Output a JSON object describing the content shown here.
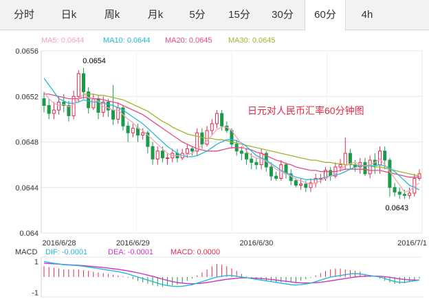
{
  "tabs": [
    {
      "label": "分时",
      "active": false
    },
    {
      "label": "日k",
      "active": false
    },
    {
      "label": "周k",
      "active": false
    },
    {
      "label": "月k",
      "active": false
    },
    {
      "label": "5分",
      "active": false
    },
    {
      "label": "15分",
      "active": false
    },
    {
      "label": "30分",
      "active": false
    },
    {
      "label": "60分",
      "active": true
    },
    {
      "label": "4h",
      "active": false
    }
  ],
  "colors": {
    "up": "#e0284a",
    "down": "#1a9a4a",
    "ma5": "#f5a3b8",
    "ma10": "#22b8d6",
    "ma20": "#e8478a",
    "ma30": "#9bb52a",
    "dif": "#22b8d6",
    "dea": "#cc33cc"
  },
  "chart_data": {
    "type": "candlestick",
    "title": "日元对人民币汇率60分钟图",
    "legend": [
      {
        "label": "MA5: 0.0644",
        "key": "ma5"
      },
      {
        "label": "MA10: 0.0644",
        "key": "ma10"
      },
      {
        "label": "MA20: 0.0645",
        "key": "ma20"
      },
      {
        "label": "MA30: 0.0645",
        "key": "ma30"
      }
    ],
    "y_ticks": [
      "0.0656",
      "0.0652",
      "0.0648",
      "0.0644",
      "0.064"
    ],
    "ylim": [
      0.064,
      0.0656
    ],
    "x_labels": [
      "2016/6/28",
      "2016/6/29",
      "2016/6/30",
      "2016/7/1"
    ],
    "x_label_index": [
      0,
      18,
      43,
      76
    ],
    "annotations": [
      {
        "text": "0.0654",
        "index": 7,
        "value": 0.06543
      },
      {
        "text": "0.0643",
        "index": 73,
        "value": 0.06432
      }
    ],
    "candles": [
      [
        0.06518,
        0.06512,
        0.06524,
        0.06506
      ],
      [
        0.06512,
        0.06505,
        0.06518,
        0.065
      ],
      [
        0.06505,
        0.06508,
        0.06515,
        0.065
      ],
      [
        0.06508,
        0.06515,
        0.0652,
        0.06504
      ],
      [
        0.06515,
        0.06512,
        0.06522,
        0.06506
      ],
      [
        0.06512,
        0.06503,
        0.06516,
        0.06498
      ],
      [
        0.06503,
        0.0652,
        0.06525,
        0.065
      ],
      [
        0.0652,
        0.0654,
        0.06543,
        0.06515
      ],
      [
        0.0654,
        0.06524,
        0.06545,
        0.06518
      ],
      [
        0.06524,
        0.0651,
        0.06528,
        0.06505
      ],
      [
        0.0651,
        0.06518,
        0.06522,
        0.06508
      ],
      [
        0.06518,
        0.06506,
        0.06521,
        0.065
      ],
      [
        0.06506,
        0.06515,
        0.0652,
        0.06502
      ],
      [
        0.06515,
        0.06508,
        0.06518,
        0.06502
      ],
      [
        0.06508,
        0.065,
        0.0653,
        0.06495
      ],
      [
        0.065,
        0.0651,
        0.06515,
        0.06496
      ],
      [
        0.0651,
        0.06494,
        0.06512,
        0.0649
      ],
      [
        0.06494,
        0.06488,
        0.06498,
        0.0648
      ],
      [
        0.06488,
        0.06492,
        0.06496,
        0.06484
      ],
      [
        0.06492,
        0.06486,
        0.06496,
        0.0648
      ],
      [
        0.06486,
        0.06488,
        0.06492,
        0.06482
      ],
      [
        0.06488,
        0.06476,
        0.0649,
        0.0647
      ],
      [
        0.06476,
        0.06465,
        0.0648,
        0.0646
      ],
      [
        0.06465,
        0.06472,
        0.06476,
        0.0646
      ],
      [
        0.06472,
        0.06466,
        0.06476,
        0.06462
      ],
      [
        0.06466,
        0.06466,
        0.0647,
        0.0646
      ],
      [
        0.06466,
        0.0647,
        0.06474,
        0.06462
      ],
      [
        0.0647,
        0.06466,
        0.06474,
        0.06462
      ],
      [
        0.06466,
        0.0647,
        0.06474,
        0.06464
      ],
      [
        0.0647,
        0.06474,
        0.06478,
        0.06466
      ],
      [
        0.06474,
        0.06472,
        0.06476,
        0.06468
      ],
      [
        0.06472,
        0.06488,
        0.06492,
        0.06468
      ],
      [
        0.06488,
        0.06478,
        0.06492,
        0.06474
      ],
      [
        0.06478,
        0.0649,
        0.06494,
        0.06476
      ],
      [
        0.0649,
        0.06496,
        0.065,
        0.06486
      ],
      [
        0.06496,
        0.06505,
        0.06508,
        0.06492
      ],
      [
        0.06505,
        0.06494,
        0.06508,
        0.0649
      ],
      [
        0.06494,
        0.0649,
        0.06498,
        0.06488
      ],
      [
        0.0649,
        0.06478,
        0.06492,
        0.06474
      ],
      [
        0.06478,
        0.06472,
        0.06482,
        0.06468
      ],
      [
        0.06472,
        0.0647,
        0.06476,
        0.06464
      ],
      [
        0.0647,
        0.06465,
        0.06474,
        0.0646
      ],
      [
        0.06465,
        0.06462,
        0.0647,
        0.06456
      ],
      [
        0.06462,
        0.0646,
        0.06466,
        0.06456
      ],
      [
        0.0646,
        0.0647,
        0.06474,
        0.06456
      ],
      [
        0.0647,
        0.06458,
        0.06472,
        0.06454
      ],
      [
        0.06458,
        0.0645,
        0.06462,
        0.06446
      ],
      [
        0.0645,
        0.06448,
        0.06454,
        0.06446
      ],
      [
        0.06448,
        0.0646,
        0.06464,
        0.06446
      ],
      [
        0.0646,
        0.06452,
        0.06462,
        0.06448
      ],
      [
        0.06452,
        0.06446,
        0.06456,
        0.06442
      ],
      [
        0.06446,
        0.06442,
        0.06448,
        0.0644
      ],
      [
        0.06442,
        0.06443,
        0.06448,
        0.06438
      ],
      [
        0.06443,
        0.0644,
        0.06446,
        0.06436
      ],
      [
        0.0644,
        0.06444,
        0.06448,
        0.06436
      ],
      [
        0.06444,
        0.06448,
        0.06452,
        0.0644
      ],
      [
        0.06448,
        0.06448,
        0.06452,
        0.06444
      ],
      [
        0.06448,
        0.06455,
        0.06458,
        0.06446
      ],
      [
        0.06455,
        0.0645,
        0.06458,
        0.06446
      ],
      [
        0.0645,
        0.06458,
        0.06462,
        0.06448
      ],
      [
        0.06458,
        0.0646,
        0.06465,
        0.06454
      ],
      [
        0.0646,
        0.0647,
        0.06484,
        0.06456
      ],
      [
        0.0647,
        0.0646,
        0.06474,
        0.06456
      ],
      [
        0.0646,
        0.06458,
        0.06464,
        0.06454
      ],
      [
        0.06458,
        0.06462,
        0.06466,
        0.06452
      ],
      [
        0.06462,
        0.06452,
        0.06466,
        0.0645
      ],
      [
        0.06452,
        0.06464,
        0.06468,
        0.06448
      ],
      [
        0.06464,
        0.0646,
        0.0647,
        0.06452
      ],
      [
        0.0646,
        0.06472,
        0.06476,
        0.06452
      ],
      [
        0.06472,
        0.06464,
        0.06476,
        0.06456
      ],
      [
        0.06464,
        0.0644,
        0.06466,
        0.06432
      ],
      [
        0.0644,
        0.06436,
        0.06444,
        0.06432
      ],
      [
        0.06436,
        0.06434,
        0.0644,
        0.0643
      ],
      [
        0.06434,
        0.06433,
        0.06438,
        0.0643
      ],
      [
        0.06433,
        0.06435,
        0.0644,
        0.0643
      ],
      [
        0.06435,
        0.06448,
        0.06452,
        0.06432
      ],
      [
        0.06448,
        0.06452,
        0.06456,
        0.06446
      ]
    ],
    "ma5": [
      0.06524,
      0.06518,
      0.06514,
      0.06512,
      0.06513,
      0.06511,
      0.06513,
      0.06518,
      0.06522,
      0.06519,
      0.06517,
      0.06516,
      0.06511,
      0.0651,
      0.06508,
      0.06508,
      0.06504,
      0.065,
      0.06497,
      0.06492,
      0.0649,
      0.06486,
      0.06482,
      0.06478,
      0.06474,
      0.0647,
      0.06468,
      0.06468,
      0.06468,
      0.06469,
      0.0647,
      0.06474,
      0.06477,
      0.06481,
      0.06486,
      0.06491,
      0.06493,
      0.06493,
      0.0649,
      0.06484,
      0.06478,
      0.06472,
      0.06468,
      0.06466,
      0.06465,
      0.06463,
      0.0646,
      0.06456,
      0.06454,
      0.06452,
      0.0645,
      0.06447,
      0.06446,
      0.06444,
      0.06443,
      0.06444,
      0.06446,
      0.06448,
      0.0645,
      0.06452,
      0.06456,
      0.06459,
      0.06461,
      0.06462,
      0.0646,
      0.06459,
      0.0646,
      0.06462,
      0.06465,
      0.0646,
      0.06454,
      0.06448,
      0.06442,
      0.06436,
      0.06437,
      0.06441,
      0.06444
    ],
    "ma10": [
      0.06536,
      0.0653,
      0.06524,
      0.06518,
      0.06516,
      0.06514,
      0.06514,
      0.06515,
      0.06517,
      0.06516,
      0.06515,
      0.06515,
      0.06514,
      0.06513,
      0.06512,
      0.0651,
      0.06508,
      0.06505,
      0.06502,
      0.06499,
      0.06496,
      0.06492,
      0.06488,
      0.06484,
      0.0648,
      0.06476,
      0.06473,
      0.0647,
      0.06468,
      0.06467,
      0.06467,
      0.06468,
      0.0647,
      0.06472,
      0.06475,
      0.06478,
      0.0648,
      0.06482,
      0.06482,
      0.06481,
      0.06479,
      0.06476,
      0.06472,
      0.06468,
      0.06466,
      0.06464,
      0.06461,
      0.06458,
      0.06455,
      0.06453,
      0.06451,
      0.06449,
      0.06448,
      0.06447,
      0.06447,
      0.06447,
      0.06448,
      0.06449,
      0.0645,
      0.06451,
      0.06452,
      0.06454,
      0.06456,
      0.06458,
      0.06459,
      0.06459,
      0.06459,
      0.06459,
      0.0646,
      0.06459,
      0.06457,
      0.06454,
      0.0645,
      0.06446,
      0.06442,
      0.0644,
      0.06438
    ],
    "ma20": [
      0.06522,
      0.06522,
      0.06521,
      0.0652,
      0.06519,
      0.06518,
      0.06518,
      0.06518,
      0.06519,
      0.06519,
      0.06518,
      0.06518,
      0.06517,
      0.06516,
      0.06515,
      0.06514,
      0.06512,
      0.0651,
      0.06508,
      0.06506,
      0.06504,
      0.06501,
      0.06498,
      0.06495,
      0.06492,
      0.06489,
      0.06486,
      0.06483,
      0.0648,
      0.06478,
      0.06476,
      0.06474,
      0.06473,
      0.06472,
      0.06472,
      0.06472,
      0.06473,
      0.06474,
      0.06475,
      0.06475,
      0.06475,
      0.06474,
      0.06473,
      0.06471,
      0.0647,
      0.06468,
      0.06466,
      0.06464,
      0.06463,
      0.06461,
      0.0646,
      0.06458,
      0.06457,
      0.06456,
      0.06455,
      0.06455,
      0.06454,
      0.06454,
      0.06454,
      0.06454,
      0.06455,
      0.06456,
      0.06456,
      0.06456,
      0.06456,
      0.06456,
      0.06455,
      0.06455,
      0.06455,
      0.06454,
      0.06453,
      0.06452,
      0.06451,
      0.0645,
      0.06449,
      0.06449,
      0.06449
    ],
    "ma30": [
      null,
      null,
      null,
      null,
      null,
      null,
      null,
      null,
      0.06522,
      0.06522,
      0.06522,
      0.06521,
      0.06521,
      0.0652,
      0.06519,
      0.06518,
      0.06517,
      0.06515,
      0.06513,
      0.06511,
      0.06509,
      0.06507,
      0.06504,
      0.06501,
      0.06498,
      0.06496,
      0.06493,
      0.06491,
      0.06489,
      0.06487,
      0.06486,
      0.06485,
      0.06484,
      0.06483,
      0.06483,
      0.06482,
      0.06482,
      0.06481,
      0.0648,
      0.06479,
      0.06478,
      0.06477,
      0.06476,
      0.06475,
      0.06474,
      0.06473,
      0.06472,
      0.06471,
      0.0647,
      0.06469,
      0.06468,
      0.06467,
      0.06466,
      0.06465,
      0.06464,
      0.06464,
      0.06463,
      0.06462,
      0.06462,
      0.06461,
      0.06461,
      0.0646,
      0.0646,
      0.0646,
      0.06459,
      0.06459,
      0.06459,
      0.06458,
      0.06458,
      0.06457,
      0.06456,
      0.06455,
      0.06454,
      0.06453,
      0.06452,
      0.06451,
      0.0645
    ],
    "macd": {
      "name": "MACD",
      "legend": [
        {
          "label": "DIF: -0.0001",
          "key": "dif"
        },
        {
          "label": "DEA: -0.0001",
          "key": "dea"
        },
        {
          "label": "MACD: 0.0000",
          "key": "up"
        }
      ],
      "y_ticks": [
        "1",
        "-1"
      ],
      "ylim": [
        -1.3,
        1.3
      ],
      "dif": [
        1.0,
        0.95,
        0.9,
        0.85,
        0.8,
        0.78,
        0.76,
        0.74,
        0.7,
        0.65,
        0.6,
        0.55,
        0.5,
        0.45,
        0.4,
        0.35,
        0.28,
        0.2,
        0.1,
        0.0,
        -0.1,
        -0.2,
        -0.3,
        -0.4,
        -0.5,
        -0.55,
        -0.6,
        -0.62,
        -0.6,
        -0.55,
        -0.5,
        -0.4,
        -0.3,
        -0.2,
        -0.1,
        0.0,
        0.05,
        0.1,
        0.1,
        0.05,
        0.0,
        -0.05,
        -0.1,
        -0.15,
        -0.2,
        -0.25,
        -0.3,
        -0.35,
        -0.4,
        -0.45,
        -0.5,
        -0.52,
        -0.5,
        -0.45,
        -0.4,
        -0.3,
        -0.2,
        -0.1,
        0.0,
        0.05,
        0.1,
        0.15,
        0.2,
        0.22,
        0.2,
        0.15,
        0.1,
        0.05,
        0.0,
        -0.1,
        -0.2,
        -0.3,
        -0.35,
        -0.35,
        -0.3,
        -0.25,
        -0.2
      ],
      "dea": [
        0.9,
        0.88,
        0.86,
        0.84,
        0.82,
        0.8,
        0.78,
        0.76,
        0.74,
        0.71,
        0.68,
        0.65,
        0.62,
        0.58,
        0.54,
        0.5,
        0.45,
        0.4,
        0.34,
        0.27,
        0.2,
        0.12,
        0.04,
        -0.05,
        -0.14,
        -0.22,
        -0.3,
        -0.36,
        -0.4,
        -0.43,
        -0.44,
        -0.43,
        -0.4,
        -0.36,
        -0.31,
        -0.25,
        -0.2,
        -0.15,
        -0.11,
        -0.08,
        -0.06,
        -0.06,
        -0.07,
        -0.08,
        -0.1,
        -0.13,
        -0.16,
        -0.2,
        -0.24,
        -0.28,
        -0.32,
        -0.36,
        -0.38,
        -0.39,
        -0.39,
        -0.37,
        -0.34,
        -0.3,
        -0.25,
        -0.2,
        -0.15,
        -0.1,
        -0.05,
        0.0,
        0.03,
        0.05,
        0.06,
        0.06,
        0.05,
        0.02,
        -0.02,
        -0.07,
        -0.12,
        -0.16,
        -0.19,
        -0.2,
        -0.2
      ],
      "hist": [
        0.7,
        0.65,
        0.6,
        0.55,
        0.5,
        0.5,
        0.5,
        0.5,
        0.45,
        0.4,
        0.35,
        0.3,
        0.25,
        0.2,
        0.15,
        0.1,
        0.05,
        -0.05,
        -0.15,
        -0.25,
        -0.35,
        -0.45,
        -0.55,
        -0.6,
        -0.65,
        -0.6,
        -0.55,
        -0.5,
        -0.4,
        -0.25,
        -0.1,
        0.1,
        0.3,
        0.5,
        0.7,
        0.85,
        0.8,
        0.7,
        0.55,
        0.4,
        0.2,
        0.05,
        -0.05,
        -0.15,
        -0.2,
        -0.25,
        -0.3,
        -0.35,
        -0.35,
        -0.35,
        -0.35,
        -0.32,
        -0.25,
        -0.15,
        -0.05,
        0.1,
        0.25,
        0.4,
        0.5,
        0.55,
        0.55,
        0.5,
        0.45,
        0.4,
        0.35,
        0.2,
        0.1,
        0.0,
        -0.1,
        -0.25,
        -0.35,
        -0.45,
        -0.45,
        -0.4,
        -0.3,
        -0.2,
        -0.1
      ]
    }
  }
}
